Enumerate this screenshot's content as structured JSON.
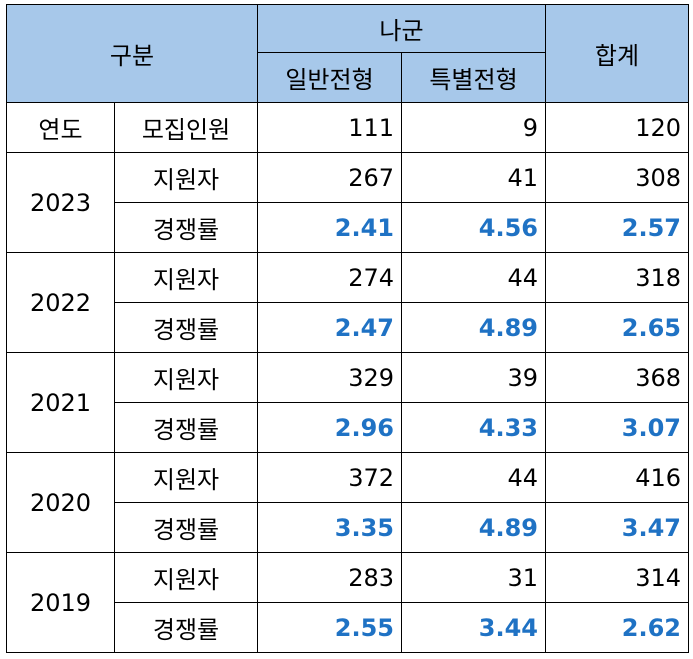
{
  "header": {
    "category": "구분",
    "group": "나군",
    "general": "일반전형",
    "special": "특별전형",
    "total": "합계"
  },
  "quota": {
    "year_label": "연도",
    "label": "모집인원",
    "general": "111",
    "special": "9",
    "total": "120"
  },
  "rows": [
    {
      "year": "2023",
      "applicants": {
        "label": "지원자",
        "general": "267",
        "special": "41",
        "total": "308"
      },
      "ratio": {
        "label": "경쟁률",
        "general": "2.41",
        "special": "4.56",
        "total": "2.57"
      }
    },
    {
      "year": "2022",
      "applicants": {
        "label": "지원자",
        "general": "274",
        "special": "44",
        "total": "318"
      },
      "ratio": {
        "label": "경쟁률",
        "general": "2.47",
        "special": "4.89",
        "total": "2.65"
      }
    },
    {
      "year": "2021",
      "applicants": {
        "label": "지원자",
        "general": "329",
        "special": "39",
        "total": "368"
      },
      "ratio": {
        "label": "경쟁률",
        "general": "2.96",
        "special": "4.33",
        "total": "3.07"
      }
    },
    {
      "year": "2020",
      "applicants": {
        "label": "지원자",
        "general": "372",
        "special": "44",
        "total": "416"
      },
      "ratio": {
        "label": "경쟁률",
        "general": "3.35",
        "special": "4.89",
        "total": "3.47"
      }
    },
    {
      "year": "2019",
      "applicants": {
        "label": "지원자",
        "general": "283",
        "special": "31",
        "total": "314"
      },
      "ratio": {
        "label": "경쟁률",
        "general": "2.55",
        "special": "3.44",
        "total": "2.62"
      }
    }
  ],
  "colors": {
    "header_bg": "#a7c8ea",
    "ratio_text": "#1f72c4"
  }
}
